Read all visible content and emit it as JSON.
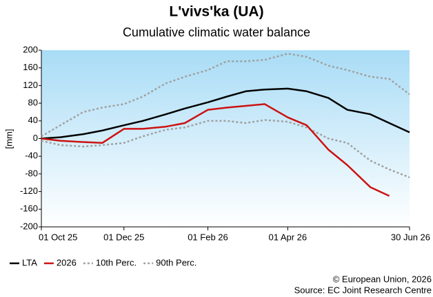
{
  "chart_data": {
    "type": "line",
    "title": "L'vivs'ka (UA)",
    "subtitle": "Cumulative climatic water balance",
    "y_label": "[mm]",
    "x": [
      "2025-10-01",
      "2025-10-15",
      "2025-11-01",
      "2025-11-15",
      "2025-12-01",
      "2025-12-15",
      "2026-01-01",
      "2026-01-15",
      "2026-02-01",
      "2026-02-15",
      "2026-03-01",
      "2026-03-15",
      "2026-04-01",
      "2026-04-15",
      "2026-05-01",
      "2026-05-15",
      "2026-06-01",
      "2026-06-15",
      "2026-06-30"
    ],
    "series": [
      {
        "name": "LTA",
        "color": "#000000",
        "dash": "solid",
        "values": [
          0,
          3,
          10,
          18,
          30,
          40,
          55,
          68,
          82,
          95,
          107,
          111,
          113,
          107,
          92,
          65,
          55,
          35,
          14
        ]
      },
      {
        "name": "2026",
        "color": "#cc1111",
        "dash": "solid",
        "values": [
          0,
          -5,
          -8,
          -10,
          22,
          22,
          27,
          35,
          65,
          70,
          74,
          78,
          48,
          30,
          -25,
          -60,
          -110,
          -130,
          null
        ]
      },
      {
        "name": "10th Perc.",
        "color": "#a0a0a0",
        "dash": "dotted",
        "values": [
          -5,
          -15,
          -18,
          -15,
          -10,
          5,
          20,
          25,
          40,
          40,
          35,
          42,
          38,
          25,
          0,
          -10,
          -50,
          -70,
          -88
        ]
      },
      {
        "name": "90th Perc.",
        "color": "#a0a0a0",
        "dash": "dotted",
        "values": [
          5,
          30,
          60,
          70,
          78,
          95,
          125,
          140,
          155,
          175,
          175,
          178,
          192,
          185,
          165,
          155,
          140,
          135,
          100
        ]
      }
    ],
    "xlim": [
      "2025-10-01",
      "2026-06-30"
    ],
    "xticks": [
      {
        "value": "2025-10-01",
        "label": "01 Oct 25"
      },
      {
        "value": "2025-12-01",
        "label": "01 Dec 25"
      },
      {
        "value": "2026-02-01",
        "label": "01 Feb 26"
      },
      {
        "value": "2026-04-01",
        "label": "01 Apr 26"
      },
      {
        "value": "2026-06-30",
        "label": "30 Jun 26"
      }
    ],
    "ylim": [
      -200,
      200
    ],
    "yticks": [
      -200,
      -160,
      -120,
      -80,
      -40,
      0,
      40,
      80,
      120,
      160,
      200
    ],
    "grid": false,
    "legend": "bottom-left",
    "footer": [
      "© European Union, 2026",
      "Source: EC Joint Research Centre"
    ]
  }
}
